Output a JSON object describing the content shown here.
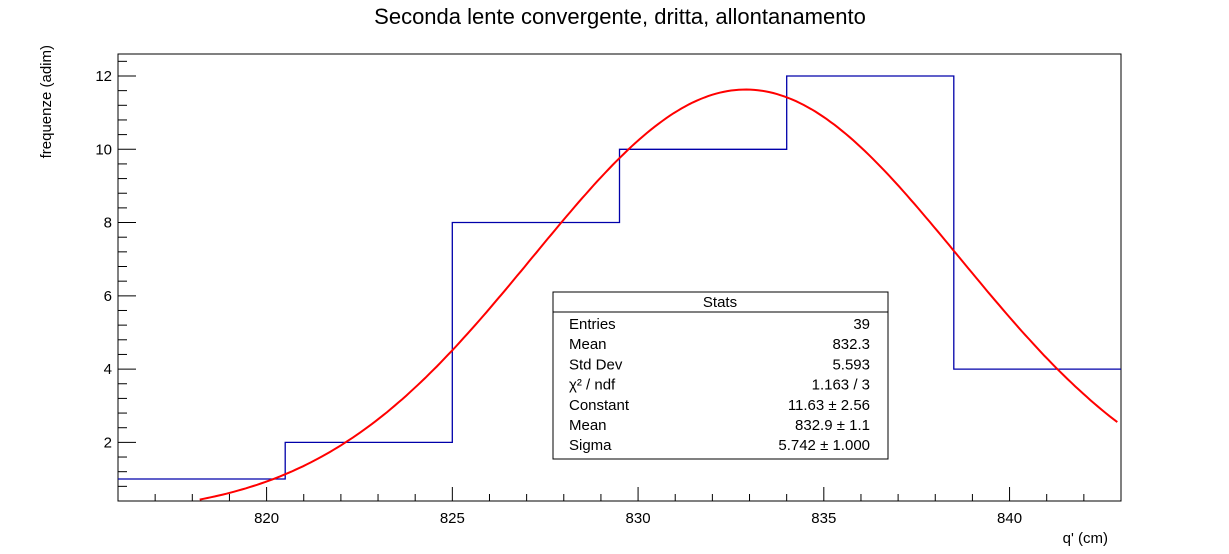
{
  "chart_data": {
    "type": "histogram",
    "title": "Seconda lente convergente, dritta, allontanamento",
    "xlabel": "q' (cm)",
    "ylabel": "frequenze (adim)",
    "xlim": [
      816,
      843
    ],
    "ylim": [
      0.4,
      12.6
    ],
    "x_ticks": [
      820,
      825,
      830,
      835,
      840
    ],
    "y_ticks": [
      2,
      4,
      6,
      8,
      10,
      12
    ],
    "x_tick_labels": [
      "820",
      "825",
      "830",
      "835",
      "840"
    ],
    "y_tick_labels": [
      "2",
      "4",
      "6",
      "8",
      "10",
      "12"
    ],
    "bin_edges": [
      816,
      820.5,
      825,
      829.5,
      834,
      838.5,
      843
    ],
    "values": [
      1,
      2,
      8,
      10,
      12,
      4
    ],
    "histogram_color": "#0000aa",
    "fit": {
      "function": "gaus",
      "constant": 11.63,
      "mean": 832.9,
      "sigma": 5.742,
      "x_range": [
        818.2,
        842.9
      ],
      "color": "#ff0000"
    },
    "stats": {
      "title": "Stats",
      "rows": [
        {
          "label": "Entries",
          "value": "39"
        },
        {
          "label": "Mean",
          "value": "832.3"
        },
        {
          "label": "Std Dev",
          "value": "5.593"
        },
        {
          "label": "χ² / ndf",
          "value": "1.163 / 3"
        },
        {
          "label": "Constant",
          "value": "11.63 ± 2.56"
        },
        {
          "label": "Mean",
          "value": "832.9 ± 1.1"
        },
        {
          "label": "Sigma",
          "value": "5.742 ± 1.000"
        }
      ]
    }
  }
}
